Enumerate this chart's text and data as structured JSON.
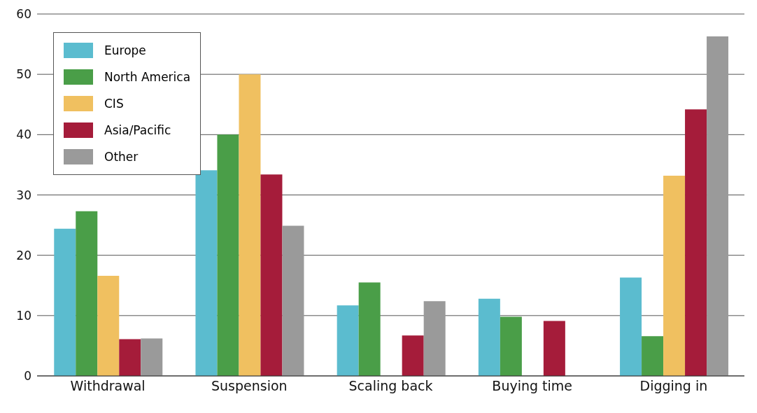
{
  "chart_data": {
    "type": "bar",
    "categories": [
      "Withdrawal",
      "Suspension",
      "Scaling back",
      "Buying time",
      "Digging in"
    ],
    "series": [
      {
        "name": "Europe",
        "color": "#5bbccf",
        "values": [
          24.4,
          34.1,
          11.7,
          12.8,
          16.3
        ]
      },
      {
        "name": "North America",
        "color": "#4a9e48",
        "values": [
          27.3,
          40,
          15.5,
          9.8,
          6.6
        ]
      },
      {
        "name": "CIS",
        "color": "#f0c060",
        "values": [
          16.6,
          50,
          null,
          null,
          33.2
        ]
      },
      {
        "name": "Asia/Pacific",
        "color": "#a51c3a",
        "values": [
          6.1,
          33.4,
          6.7,
          9.1,
          44.2
        ]
      },
      {
        "name": "Other",
        "color": "#9a9a9a",
        "values": [
          6.2,
          24.9,
          12.4,
          null,
          56.3
        ]
      }
    ],
    "ylim": [
      0,
      60
    ],
    "yticks": [
      0,
      10,
      20,
      30,
      40,
      50,
      60
    ],
    "grid": "y",
    "legend": "top left"
  }
}
